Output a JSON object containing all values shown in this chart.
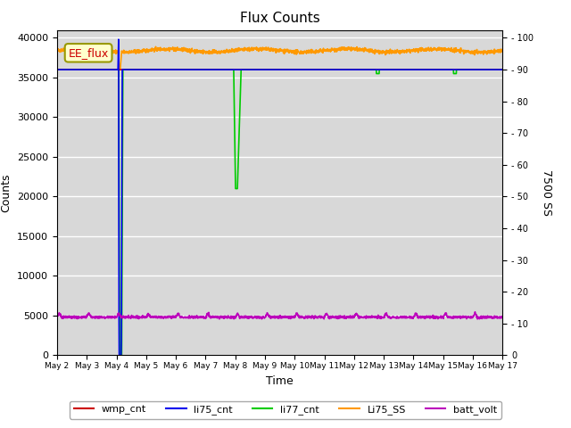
{
  "title": "Flux Counts",
  "xlabel": "Time",
  "ylabel_left": "Counts",
  "ylabel_right": "7500 SS",
  "annotation_text": "EE_flux",
  "background_color": "#d8d8d8",
  "ylim_left": [
    0,
    41000
  ],
  "ylim_right": [
    0,
    102.5
  ],
  "yticks_left": [
    0,
    5000,
    10000,
    15000,
    20000,
    25000,
    30000,
    35000,
    40000
  ],
  "yticks_right": [
    0,
    10,
    20,
    30,
    40,
    50,
    60,
    70,
    80,
    90,
    100
  ],
  "x_tick_labels": [
    "May 2",
    "May 3",
    "May 4",
    "May 5",
    "May 6",
    "May 7",
    "May 8",
    "May 9",
    "May 10",
    "May 11",
    "May 12",
    "May 13",
    "May 14",
    "May 15",
    "May 16",
    "May 17"
  ],
  "series": {
    "wmp_cnt": {
      "color": "#cc0000",
      "lw": 1.2
    },
    "li75_cnt": {
      "color": "#0000ee",
      "lw": 1.2
    },
    "li77_cnt": {
      "color": "#00cc00",
      "lw": 1.2
    },
    "Li75_SS": {
      "color": "#ff9900",
      "lw": 1.2
    },
    "batt_volt": {
      "color": "#bb00bb",
      "lw": 1.2
    }
  }
}
